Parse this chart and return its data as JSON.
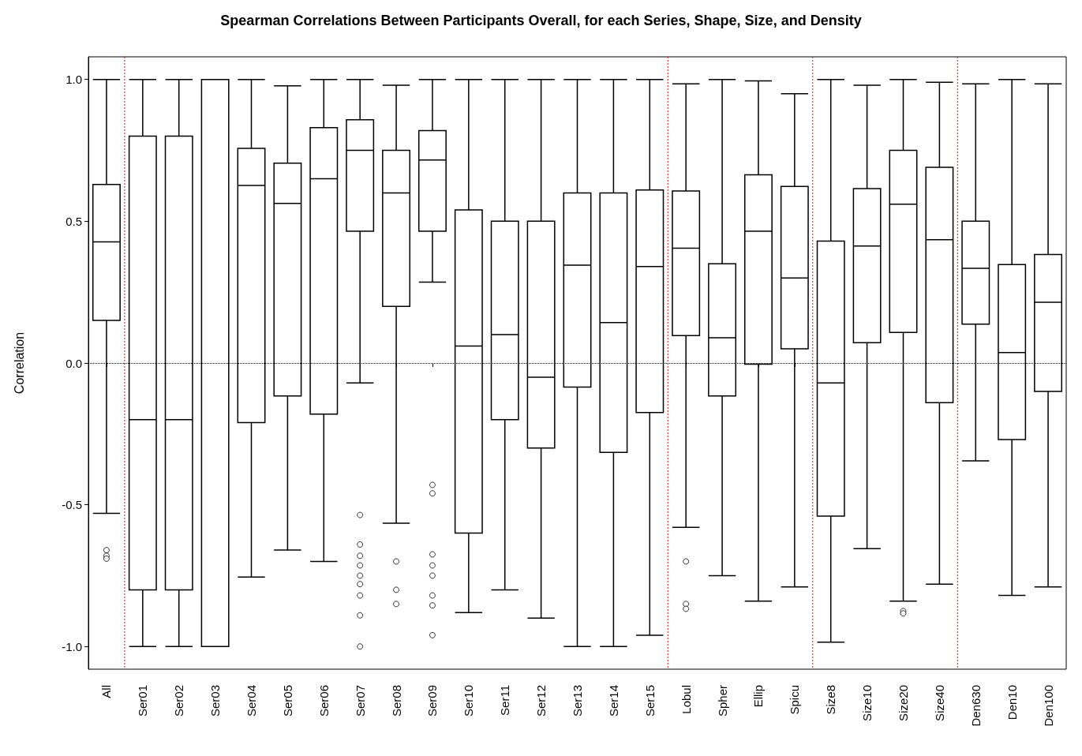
{
  "chart_data": {
    "type": "box",
    "title": "Spearman Correlations Between Participants Overall, for each Series, Shape, Size, and Density",
    "ylabel": "Correlation",
    "categories": [
      "All",
      "Ser01",
      "Ser02",
      "Ser03",
      "Ser04",
      "Ser05",
      "Ser06",
      "Ser07",
      "Ser08",
      "Ser09",
      "Ser10",
      "Ser11",
      "Ser12",
      "Ser13",
      "Ser14",
      "Ser15",
      "Lobul",
      "Spher",
      "Ellip",
      "Spicu",
      "Size8",
      "Size10",
      "Size20",
      "Size40",
      "Den630",
      "Den10",
      "Den100"
    ],
    "boxes": [
      {
        "low": -0.53,
        "q1": 0.15,
        "median": 0.427,
        "q3": 0.63,
        "high": 1.0,
        "outliers": [
          -0.66,
          -0.68,
          -0.69
        ]
      },
      {
        "low": -1.0,
        "q1": -0.8,
        "median": -0.2,
        "q3": 0.8,
        "high": 1.0
      },
      {
        "low": -1.0,
        "q1": -0.8,
        "median": -0.2,
        "q3": 0.8,
        "high": 1.0
      },
      {
        "low": -1.0,
        "q1": -1.0,
        "median": -1.0,
        "q3": 1.0,
        "high": 1.0
      },
      {
        "low": -0.755,
        "q1": -0.21,
        "median": 0.626,
        "q3": 0.757,
        "high": 1.0
      },
      {
        "low": -0.66,
        "q1": -0.116,
        "median": 0.563,
        "q3": 0.705,
        "high": 0.978
      },
      {
        "low": -0.7,
        "q1": -0.18,
        "median": 0.65,
        "q3": 0.83,
        "high": 1.0
      },
      {
        "low": -0.07,
        "q1": 0.465,
        "median": 0.75,
        "q3": 0.858,
        "high": 1.0,
        "outliers": [
          -0.536,
          -0.64,
          -0.68,
          -0.714,
          -0.75,
          -0.78,
          -0.82,
          -0.89,
          -1.0
        ]
      },
      {
        "low": -0.565,
        "q1": 0.2,
        "median": 0.6,
        "q3": 0.75,
        "high": 0.98,
        "outliers": [
          -0.7,
          -0.8,
          -0.85
        ]
      },
      {
        "low": 0.285,
        "q1": 0.465,
        "median": 0.716,
        "q3": 0.82,
        "high": 1.0,
        "outliers": [
          -0.43,
          -0.46,
          -0.675,
          -0.714,
          -0.75,
          -0.82,
          -0.855,
          -0.96
        ]
      },
      {
        "low": -0.88,
        "q1": -0.6,
        "median": 0.06,
        "q3": 0.54,
        "high": 1.0
      },
      {
        "low": -0.8,
        "q1": -0.2,
        "median": 0.1,
        "q3": 0.5,
        "high": 1.0
      },
      {
        "low": -0.9,
        "q1": -0.3,
        "median": -0.05,
        "q3": 0.5,
        "high": 1.0
      },
      {
        "low": -1.0,
        "q1": -0.085,
        "median": 0.345,
        "q3": 0.6,
        "high": 1.0
      },
      {
        "low": -1.0,
        "q1": -0.315,
        "median": 0.143,
        "q3": 0.6,
        "high": 1.0
      },
      {
        "low": -0.96,
        "q1": -0.175,
        "median": 0.34,
        "q3": 0.61,
        "high": 1.0
      },
      {
        "low": -0.58,
        "q1": 0.097,
        "median": 0.405,
        "q3": 0.607,
        "high": 0.985,
        "outliers": [
          -0.7,
          -0.85,
          -0.867
        ]
      },
      {
        "low": -0.75,
        "q1": -0.116,
        "median": 0.089,
        "q3": 0.35,
        "high": 1.0
      },
      {
        "low": -0.84,
        "q1": -0.004,
        "median": 0.465,
        "q3": 0.664,
        "high": 0.995
      },
      {
        "low": -0.79,
        "q1": 0.05,
        "median": 0.3,
        "q3": 0.623,
        "high": 0.95
      },
      {
        "low": -0.985,
        "q1": -0.54,
        "median": -0.07,
        "q3": 0.43,
        "high": 1.0
      },
      {
        "low": -0.655,
        "q1": 0.072,
        "median": 0.413,
        "q3": 0.615,
        "high": 0.98
      },
      {
        "low": -0.84,
        "q1": 0.108,
        "median": 0.56,
        "q3": 0.75,
        "high": 1.0,
        "outliers": [
          -0.875,
          -0.883
        ]
      },
      {
        "low": -0.78,
        "q1": -0.14,
        "median": 0.435,
        "q3": 0.69,
        "high": 0.99
      },
      {
        "low": -0.345,
        "q1": 0.137,
        "median": 0.334,
        "q3": 0.5,
        "high": 0.985
      },
      {
        "low": -0.82,
        "q1": -0.27,
        "median": 0.037,
        "q3": 0.347,
        "high": 1.0
      },
      {
        "low": -0.79,
        "q1": -0.1,
        "median": 0.214,
        "q3": 0.383,
        "high": 0.985
      }
    ],
    "ylim": [
      -1.08,
      1.08
    ],
    "yticks": [
      {
        "value": -1,
        "label": "-1.0"
      },
      {
        "value": -0.5,
        "label": "-0.5"
      },
      {
        "value": 0,
        "label": "0.0"
      },
      {
        "value": 0.5,
        "label": "0.5"
      },
      {
        "value": 1,
        "label": "1.0"
      }
    ],
    "ref_lines": [
      {
        "axis": "y",
        "value": 0,
        "color": "#000000",
        "line_style": "dotted"
      }
    ],
    "marker": "circle",
    "grid": false
  }
}
